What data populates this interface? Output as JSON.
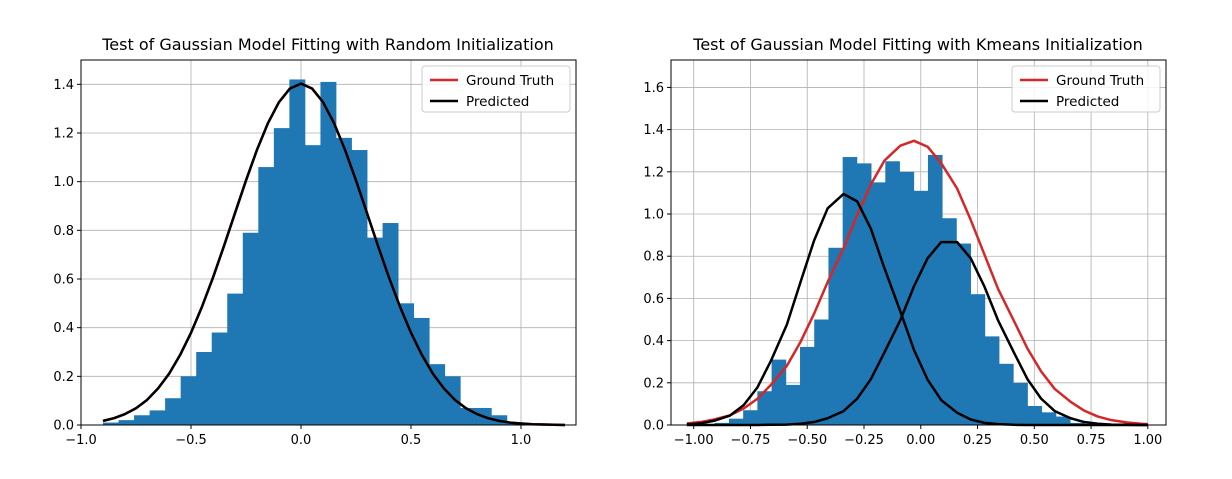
{
  "chart_data": [
    {
      "type": "histogram-with-lines",
      "title": "Test of Gaussian Model Fitting with Random Initialization",
      "xlim": [
        -1.0,
        1.25
      ],
      "ylim": [
        0,
        1.5
      ],
      "xticks": [
        -1.0,
        -0.5,
        0.0,
        0.5,
        1.0
      ],
      "xtick_labels": [
        "−1.0",
        "−0.5",
        "0.0",
        "0.5",
        "1.0"
      ],
      "yticks": [
        0.0,
        0.2,
        0.4,
        0.6,
        0.8,
        1.0,
        1.2,
        1.4
      ],
      "ytick_labels": [
        "0.0",
        "0.2",
        "0.4",
        "0.6",
        "0.8",
        "1.0",
        "1.2",
        "1.4"
      ],
      "grid": true,
      "legend_position": "top-right",
      "bar_color": "#1f77b4",
      "bins": {
        "start": -0.9,
        "width": 0.0706,
        "values": [
          0.01,
          0.02,
          0.04,
          0.06,
          0.11,
          0.2,
          0.3,
          0.38,
          0.54,
          0.79,
          1.06,
          1.22,
          1.42,
          1.15,
          1.41,
          1.18,
          1.13,
          0.77,
          0.83,
          0.5,
          0.44,
          0.25,
          0.2,
          0.07,
          0.07,
          0.04,
          0.01,
          0.0,
          0.0,
          0.0
        ]
      },
      "series": [
        {
          "name": "Ground Truth",
          "color": "#d62728",
          "x": [
            -0.9,
            -0.85,
            -0.8,
            -0.75,
            -0.7,
            -0.65,
            -0.6,
            -0.55,
            -0.5,
            -0.45,
            -0.4,
            -0.35,
            -0.3,
            -0.25,
            -0.2,
            -0.15,
            -0.1,
            -0.05,
            0.0,
            0.05,
            0.1,
            0.15,
            0.2,
            0.25,
            0.3,
            0.35,
            0.4,
            0.45,
            0.5,
            0.55,
            0.6,
            0.65,
            0.7,
            0.75,
            0.8,
            0.85,
            0.9,
            0.95,
            1.0,
            1.05,
            1.1,
            1.15,
            1.2
          ],
          "y": [
            0.017,
            0.028,
            0.045,
            0.069,
            0.103,
            0.15,
            0.21,
            0.287,
            0.379,
            0.486,
            0.606,
            0.736,
            0.871,
            1.005,
            1.131,
            1.241,
            1.327,
            1.383,
            1.403,
            1.383,
            1.327,
            1.241,
            1.131,
            1.005,
            0.871,
            0.736,
            0.606,
            0.486,
            0.379,
            0.287,
            0.21,
            0.15,
            0.103,
            0.069,
            0.045,
            0.028,
            0.017,
            0.01,
            0.006,
            0.003,
            0.002,
            0.001,
            0.0
          ]
        },
        {
          "name": "Predicted",
          "color": "#000000",
          "x": [
            -0.9,
            -0.85,
            -0.8,
            -0.75,
            -0.7,
            -0.65,
            -0.6,
            -0.55,
            -0.5,
            -0.45,
            -0.4,
            -0.35,
            -0.3,
            -0.25,
            -0.2,
            -0.15,
            -0.1,
            -0.05,
            0.0,
            0.05,
            0.1,
            0.15,
            0.2,
            0.25,
            0.3,
            0.35,
            0.4,
            0.45,
            0.5,
            0.55,
            0.6,
            0.65,
            0.7,
            0.75,
            0.8,
            0.85,
            0.9,
            0.95,
            1.0,
            1.05,
            1.1,
            1.15,
            1.2
          ],
          "y": [
            0.017,
            0.028,
            0.045,
            0.069,
            0.103,
            0.15,
            0.21,
            0.287,
            0.379,
            0.486,
            0.606,
            0.736,
            0.871,
            1.005,
            1.131,
            1.241,
            1.327,
            1.383,
            1.403,
            1.383,
            1.327,
            1.241,
            1.131,
            1.005,
            0.871,
            0.736,
            0.606,
            0.486,
            0.379,
            0.287,
            0.21,
            0.15,
            0.103,
            0.069,
            0.045,
            0.028,
            0.017,
            0.01,
            0.006,
            0.003,
            0.002,
            0.001,
            0.0
          ]
        }
      ]
    },
    {
      "type": "histogram-with-lines",
      "title": "Test of Gaussian Model Fitting with Kmeans Initialization",
      "xlim": [
        -1.1,
        1.08
      ],
      "ylim": [
        0,
        1.73
      ],
      "xticks": [
        -1.0,
        -0.75,
        -0.5,
        -0.25,
        0.0,
        0.25,
        0.5,
        0.75,
        1.0
      ],
      "xtick_labels": [
        "−1.00",
        "−0.75",
        "−0.50",
        "−0.25",
        "0.00",
        "0.25",
        "0.50",
        "0.75",
        "1.00"
      ],
      "yticks": [
        0.0,
        0.2,
        0.4,
        0.6,
        0.8,
        1.0,
        1.2,
        1.4,
        1.6
      ],
      "ytick_labels": [
        "0.0",
        "0.2",
        "0.4",
        "0.6",
        "0.8",
        "1.0",
        "1.2",
        "1.4",
        "1.6"
      ],
      "grid": true,
      "legend_position": "top-right",
      "bar_color": "#1f77b4",
      "bins": {
        "start": -0.97,
        "width": 0.0626,
        "values": [
          0.005,
          0.01,
          0.03,
          0.07,
          0.16,
          0.31,
          0.19,
          0.37,
          0.5,
          0.84,
          1.27,
          1.24,
          1.15,
          1.25,
          1.2,
          1.11,
          1.28,
          0.98,
          0.86,
          0.62,
          0.42,
          0.29,
          0.2,
          0.09,
          0.06,
          0.04,
          0.01,
          0.0,
          0.0,
          0.0,
          0.0
        ]
      },
      "series": [
        {
          "name": "Ground Truth",
          "color": "#d62728",
          "x": [
            -1.03,
            -0.97,
            -0.91,
            -0.84,
            -0.78,
            -0.72,
            -0.66,
            -0.59,
            -0.53,
            -0.47,
            -0.41,
            -0.34,
            -0.28,
            -0.22,
            -0.16,
            -0.09,
            -0.03,
            0.03,
            0.09,
            0.16,
            0.22,
            0.28,
            0.34,
            0.41,
            0.47,
            0.53,
            0.59,
            0.66,
            0.72,
            0.78,
            0.84,
            0.91,
            0.97,
            1.0
          ],
          "y": [
            0.007,
            0.014,
            0.026,
            0.046,
            0.078,
            0.124,
            0.19,
            0.28,
            0.393,
            0.527,
            0.678,
            0.838,
            0.996,
            1.14,
            1.253,
            1.324,
            1.347,
            1.319,
            1.241,
            1.121,
            0.972,
            0.809,
            0.646,
            0.494,
            0.362,
            0.254,
            0.171,
            0.11,
            0.068,
            0.04,
            0.023,
            0.012,
            0.006,
            0.004
          ]
        },
        {
          "name": "Predicted",
          "color": "#000000",
          "x": [
            -1.03,
            -0.97,
            -0.91,
            -0.84,
            -0.78,
            -0.72,
            -0.66,
            -0.59,
            -0.53,
            -0.47,
            -0.41,
            -0.34,
            -0.28,
            -0.22,
            -0.16,
            -0.09,
            -0.03,
            0.03,
            0.09,
            0.16,
            0.22,
            0.28,
            0.34,
            0.41,
            0.47,
            0.53,
            0.59,
            0.66,
            0.72,
            0.78,
            0.84,
            0.91,
            0.97,
            1.0
          ],
          "y": [
            0.003,
            0.008,
            0.02,
            0.045,
            0.094,
            0.177,
            0.304,
            0.475,
            0.676,
            0.874,
            1.027,
            1.095,
            1.06,
            0.931,
            0.743,
            0.539,
            0.356,
            0.215,
            0.118,
            0.058,
            0.026,
            0.01,
            0.004,
            0.001,
            0.0,
            0.0,
            0.0,
            0.0,
            0.0,
            0.0,
            0.0,
            0.0,
            0.0,
            0.0
          ]
        },
        {
          "name": "",
          "color": "#000000",
          "x": [
            -1.03,
            -0.97,
            -0.91,
            -0.84,
            -0.78,
            -0.72,
            -0.66,
            -0.59,
            -0.53,
            -0.47,
            -0.41,
            -0.34,
            -0.28,
            -0.22,
            -0.16,
            -0.09,
            -0.03,
            0.03,
            0.09,
            0.16,
            0.22,
            0.28,
            0.34,
            0.41,
            0.47,
            0.53,
            0.59,
            0.66,
            0.72,
            0.78,
            0.84,
            0.91,
            0.97,
            1.0
          ],
          "y": [
            0.0,
            0.0,
            0.0,
            0.0,
            0.0,
            0.0,
            0.001,
            0.002,
            0.006,
            0.014,
            0.032,
            0.066,
            0.125,
            0.217,
            0.344,
            0.497,
            0.657,
            0.79,
            0.867,
            0.867,
            0.79,
            0.657,
            0.497,
            0.344,
            0.217,
            0.125,
            0.066,
            0.032,
            0.014,
            0.006,
            0.002,
            0.001,
            0.0,
            0.0
          ]
        }
      ]
    }
  ],
  "legend": {
    "entries": [
      "Ground Truth",
      "Predicted"
    ]
  }
}
